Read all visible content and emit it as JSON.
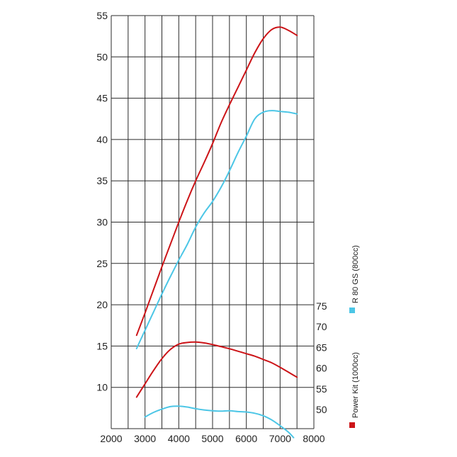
{
  "chart_data": {
    "type": "line",
    "x_ticks": [
      "2000",
      "3000",
      "4000",
      "5000",
      "6000",
      "7000",
      "8000"
    ],
    "xlim": [
      2000,
      8000
    ],
    "y_left_ticks": [
      "10",
      "15",
      "20",
      "25",
      "30",
      "35",
      "40",
      "45",
      "50",
      "55"
    ],
    "y_left_lim": [
      6,
      55
    ],
    "y_right_ticks": [
      "50",
      "55",
      "60",
      "65",
      "70",
      "75"
    ],
    "grid": true,
    "legend": [
      {
        "label": "R 80 GS (800cc)",
        "color": "#4cc6e6"
      },
      {
        "label": "Power Kit (1000cc)",
        "color": "#cc1418"
      }
    ],
    "series": [
      {
        "name": "Power Kit (1000cc)",
        "axis": "left",
        "color": "#cc1418",
        "x": [
          2750,
          3000,
          3250,
          3500,
          3750,
          4000,
          4250,
          4500,
          4750,
          5000,
          5250,
          5500,
          5750,
          6000,
          6250,
          6500,
          6750,
          7000,
          7250,
          7500
        ],
        "y": [
          16.3,
          19.0,
          21.8,
          24.6,
          27.3,
          30.0,
          32.6,
          35.0,
          37.2,
          39.5,
          42.0,
          44.2,
          46.3,
          48.4,
          50.5,
          52.2,
          53.3,
          53.6,
          53.2,
          52.6
        ]
      },
      {
        "name": "R 80 GS (800cc)",
        "axis": "left",
        "color": "#4cc6e6",
        "x": [
          2750,
          3000,
          3250,
          3500,
          3750,
          4000,
          4250,
          4500,
          4750,
          5000,
          5250,
          5500,
          5750,
          6000,
          6250,
          6500,
          6750,
          7000,
          7250,
          7500
        ],
        "y": [
          14.7,
          16.9,
          19.1,
          21.3,
          23.4,
          25.4,
          27.3,
          29.4,
          31.1,
          32.5,
          34.2,
          36.2,
          38.4,
          40.4,
          42.5,
          43.3,
          43.5,
          43.4,
          43.3,
          43.1
        ],
        "legend_match": "R 80 GS (800cc)"
      },
      {
        "name": "Power Kit (1000cc)",
        "axis": "right",
        "color": "#cc1418",
        "x": [
          2750,
          3000,
          3250,
          3500,
          3750,
          4000,
          4250,
          4500,
          4750,
          5000,
          5250,
          5500,
          5750,
          6000,
          6250,
          6500,
          6750,
          7000,
          7250,
          7500
        ],
        "y": [
          53.0,
          56.2,
          59.4,
          62.3,
          64.5,
          65.8,
          66.2,
          66.3,
          66.1,
          65.7,
          65.2,
          64.7,
          64.1,
          63.5,
          62.9,
          62.1,
          61.3,
          60.2,
          59.0,
          57.8
        ]
      },
      {
        "name": "R 80 GS (800cc)",
        "axis": "right",
        "color": "#4cc6e6",
        "x": [
          3000,
          3250,
          3500,
          3750,
          4000,
          4250,
          4500,
          4750,
          5000,
          5250,
          5500,
          5750,
          6000,
          6250,
          6500,
          6750,
          7000,
          7250,
          7400
        ],
        "y": [
          48.2,
          49.3,
          50.1,
          50.7,
          50.8,
          50.6,
          50.2,
          49.9,
          49.7,
          49.6,
          49.7,
          49.5,
          49.4,
          49.1,
          48.5,
          47.5,
          46.1,
          44.5,
          43.2
        ]
      }
    ]
  }
}
